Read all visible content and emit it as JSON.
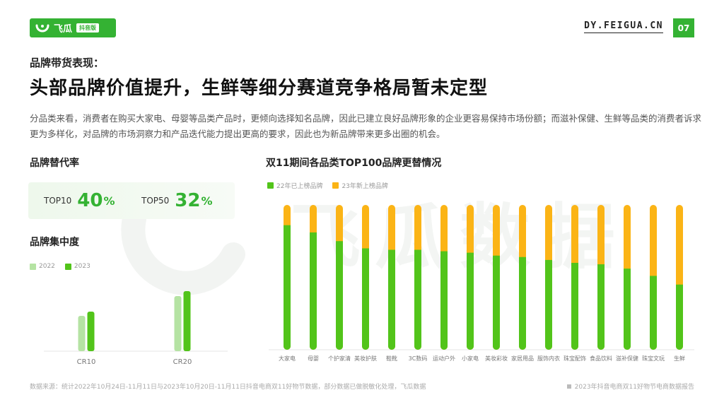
{
  "header": {
    "logo_text": "飞瓜",
    "logo_badge": "抖音版",
    "site": "DY.FEIGUA.CN",
    "page_number": "07"
  },
  "subtitle": "品牌带货表现：",
  "title": "头部品牌价值提升，生鲜等细分赛道竞争格局暂未定型",
  "description": "分品类来看，消费者在购买大家电、母婴等品类产品时，更倾向选择知名品牌，因此已建立良好品牌形象的企业更容易保持市场份额；而滋补保健、生鲜等品类的消费者诉求更为多样化，对品牌的市场洞察力和产品迭代能力提出更高的要求，因此也为新品牌带来更多出圈的机会。",
  "replacement": {
    "title": "品牌替代率",
    "items": [
      {
        "label": "TOP10",
        "value": "40",
        "unit": "%"
      },
      {
        "label": "TOP50",
        "value": "32",
        "unit": "%"
      }
    ]
  },
  "watermark_text": "飞瓜数据",
  "colors": {
    "green": "#52c41a",
    "light_green": "#b5e3a3",
    "orange": "#fbb416",
    "brand": "#34b233"
  },
  "chart_data": [
    {
      "type": "bar",
      "title": "品牌集中度",
      "categories": [
        "CR10",
        "CR20"
      ],
      "series": [
        {
          "name": "2022",
          "values": [
            0.5,
            0.78
          ]
        },
        {
          "name": "2023",
          "values": [
            0.56,
            0.85
          ]
        }
      ],
      "ylim": [
        0,
        1
      ],
      "legend": "top-left",
      "grid": false
    },
    {
      "type": "bar",
      "stacked": true,
      "percent": true,
      "title": "双11期间各品类TOP100品牌更替情况",
      "categories": [
        "大家电",
        "母婴",
        "个护家清",
        "美妆护肤",
        "鞋靴",
        "3C数码",
        "运动户外",
        "小家电",
        "美妆彩妆",
        "家居用品",
        "服饰内衣",
        "珠宝配饰",
        "食品饮料",
        "滋补保健",
        "珠宝文玩",
        "生鲜"
      ],
      "series": [
        {
          "name": "22年已上榜品牌",
          "values": [
            86,
            81,
            75,
            70,
            69,
            69,
            68,
            67,
            65,
            64,
            62,
            60,
            59,
            56,
            51,
            45
          ]
        },
        {
          "name": "23年新上榜品牌",
          "values": [
            14,
            19,
            25,
            30,
            31,
            31,
            32,
            33,
            35,
            36,
            38,
            40,
            41,
            44,
            49,
            55
          ]
        }
      ],
      "ylim": [
        0,
        100
      ],
      "legend": "top-left",
      "grid": false
    }
  ],
  "footer": {
    "source": "数据来源：统计2022年10月24日-11月11日与2023年10月20日-11月11日抖音电商双11好物节数据，部分数据已做脱敏化处理，飞瓜数据",
    "report": "2023年抖音电商双11好物节电商数据报告"
  }
}
